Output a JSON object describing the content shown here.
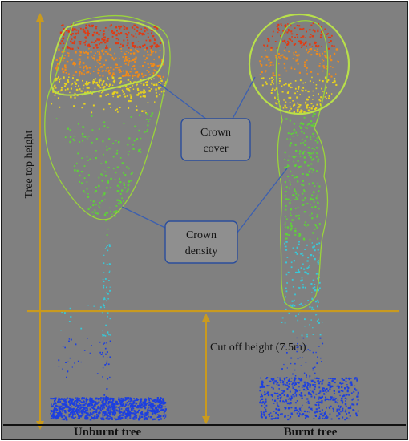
{
  "labels": {
    "y_axis": "Tree top height",
    "cutoff": "Cut off height (7.5m)",
    "crown_cover": [
      "Crown",
      "cover"
    ],
    "crown_density": [
      "Crown",
      "density"
    ],
    "unburnt": "Unburnt tree",
    "burnt": "Burnt tree"
  },
  "colors": {
    "background": "#808080",
    "border": "#1a1a1a",
    "axis_line": "#c99a1f",
    "cutoff_line": "#c99a1f",
    "crown_outline": "#9ad43a",
    "callout_line": "#3b5fb0",
    "callout_border": "#2a4d9c",
    "points_low": "#1c3fe0",
    "points_mid": "#38c8d8",
    "points_green": "#5ed03a",
    "points_yellow": "#e8d21e",
    "points_orange": "#ef8a1a",
    "points_high": "#e23a12"
  },
  "icons": {
    "unburnt_tree": "point-cloud-tree",
    "burnt_tree": "point-cloud-tree"
  }
}
